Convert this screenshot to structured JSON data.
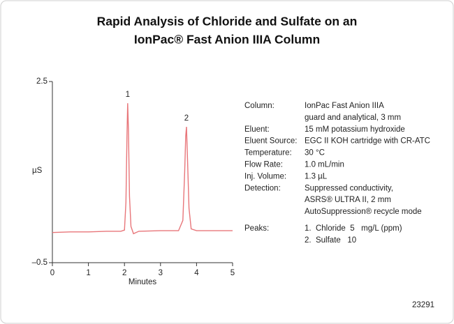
{
  "chart_data": {
    "type": "line",
    "title": [
      "Rapid Analysis of Chloride and Sulfate on an",
      "IonPac® Fast Anion IIIA Column"
    ],
    "x_label": "Minutes",
    "y_label": "µS",
    "x": [
      0,
      0.5,
      1,
      1.5,
      1.9,
      2.0,
      2.04,
      2.07,
      2.09,
      2.11,
      2.14,
      2.18,
      2.25,
      2.4,
      3.0,
      3.5,
      3.62,
      3.67,
      3.7,
      3.72,
      3.75,
      3.79,
      3.85,
      4.0,
      4.5,
      5.0
    ],
    "values": [
      0.0,
      0.01,
      0.01,
      0.02,
      0.02,
      0.04,
      0.5,
      1.6,
      2.14,
      1.7,
      0.6,
      0.1,
      -0.02,
      0.02,
      0.03,
      0.03,
      0.2,
      1.0,
      1.6,
      1.75,
      1.2,
      0.4,
      0.06,
      0.03,
      0.03,
      0.03
    ],
    "color": "#e8767a",
    "xlim": [
      0,
      5
    ],
    "xticks": [
      0,
      1,
      2,
      3,
      4,
      5
    ],
    "ylim": [
      -0.5,
      2.5
    ],
    "yticks": [
      {
        "value": -0.5,
        "label": "–0.5"
      },
      2.5
    ],
    "peak_labels": [
      "1",
      "2"
    ],
    "conditions": [
      {
        "label": "Column:",
        "lines": [
          "IonPac Fast Anion IIIA",
          "guard and analytical, 3 mm"
        ]
      },
      {
        "label": "Eluent:",
        "lines": [
          "15 mM potassium hydroxide"
        ]
      },
      {
        "label": "Eluent Source:",
        "lines": [
          "EGC II KOH cartridge with CR-ATC"
        ]
      },
      {
        "label": "Temperature:",
        "lines": [
          "30 °C"
        ]
      },
      {
        "label": "Flow Rate:",
        "lines": [
          "1.0 mL/min"
        ]
      },
      {
        "label": "Inj. Volume:",
        "lines": [
          "1.3 µL"
        ]
      },
      {
        "label": "Detection:",
        "lines": [
          "Suppressed conductivity,",
          "ASRS® ULTRA II, 2 mm",
          "AutoSuppression® recycle mode"
        ]
      },
      {
        "label": "Peaks:",
        "lines": [
          "1.  Chloride  5   mg/L (ppm)",
          "2.  Sulfate   10"
        ]
      }
    ],
    "figure_id": "23291"
  }
}
